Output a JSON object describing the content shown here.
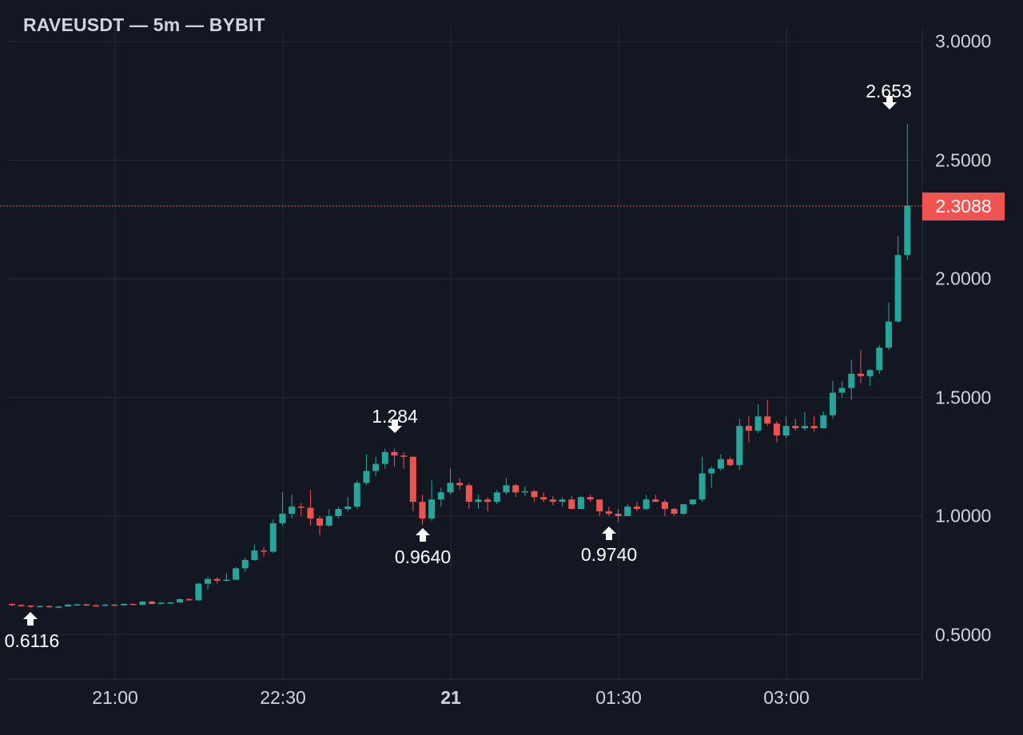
{
  "chart_data": {
    "type": "candlestick",
    "title": "RAVEUSDT — 5m — BYBIT",
    "symbol": "RAVEUSDT",
    "interval": "5m",
    "exchange": "BYBIT",
    "xlabel": "",
    "ylabel": "",
    "ylim": [
      0.32,
      3.05
    ],
    "grid": true,
    "y_ticks": [
      "3.0000",
      "2.5000",
      "2.0000",
      "1.5000",
      "1.0000",
      "0.5000"
    ],
    "x_ticks": [
      "21:00",
      "22:30",
      "21",
      "01:30",
      "03:00"
    ],
    "last_price": "2.3088",
    "annotations": [
      {
        "label": "0.6116",
        "type": "low",
        "direction": "up"
      },
      {
        "label": "1.284",
        "type": "high",
        "direction": "down"
      },
      {
        "label": "0.9640",
        "type": "low",
        "direction": "up"
      },
      {
        "label": "0.9740",
        "type": "low",
        "direction": "up"
      },
      {
        "label": "2.653",
        "type": "high",
        "direction": "down"
      }
    ],
    "colors": {
      "up": "#26a69a",
      "down": "#ef5350",
      "background": "#131722",
      "grid": "#262b36",
      "text": "#d1d4dc"
    },
    "candles": [
      [
        0.63,
        0.632,
        0.62,
        0.625
      ],
      [
        0.625,
        0.628,
        0.621,
        0.623
      ],
      [
        0.623,
        0.626,
        0.612,
        0.62
      ],
      [
        0.62,
        0.624,
        0.617,
        0.621
      ],
      [
        0.621,
        0.623,
        0.614,
        0.616
      ],
      [
        0.616,
        0.622,
        0.612,
        0.619
      ],
      [
        0.619,
        0.629,
        0.618,
        0.627
      ],
      [
        0.627,
        0.63,
        0.623,
        0.628
      ],
      [
        0.628,
        0.631,
        0.622,
        0.624
      ],
      [
        0.624,
        0.628,
        0.621,
        0.622
      ],
      [
        0.622,
        0.629,
        0.62,
        0.627
      ],
      [
        0.627,
        0.63,
        0.621,
        0.624
      ],
      [
        0.624,
        0.632,
        0.622,
        0.63
      ],
      [
        0.63,
        0.632,
        0.625,
        0.626
      ],
      [
        0.626,
        0.642,
        0.624,
        0.64
      ],
      [
        0.64,
        0.643,
        0.628,
        0.63
      ],
      [
        0.63,
        0.637,
        0.628,
        0.635
      ],
      [
        0.635,
        0.64,
        0.632,
        0.636
      ],
      [
        0.636,
        0.653,
        0.634,
        0.65
      ],
      [
        0.65,
        0.655,
        0.643,
        0.645
      ],
      [
        0.645,
        0.72,
        0.642,
        0.715
      ],
      [
        0.715,
        0.745,
        0.69,
        0.735
      ],
      [
        0.735,
        0.742,
        0.715,
        0.728
      ],
      [
        0.728,
        0.76,
        0.725,
        0.732
      ],
      [
        0.732,
        0.785,
        0.73,
        0.78
      ],
      [
        0.78,
        0.825,
        0.765,
        0.815
      ],
      [
        0.815,
        0.88,
        0.812,
        0.855
      ],
      [
        0.855,
        0.87,
        0.83,
        0.85
      ],
      [
        0.85,
        0.985,
        0.845,
        0.97
      ],
      [
        0.97,
        1.1,
        0.96,
        1.01
      ],
      [
        1.01,
        1.09,
        0.99,
        1.04
      ],
      [
        1.04,
        1.055,
        1.0,
        1.035
      ],
      [
        1.035,
        1.11,
        0.96,
        0.99
      ],
      [
        0.99,
        1.0,
        0.92,
        0.96
      ],
      [
        0.96,
        1.03,
        0.955,
        1.0
      ],
      [
        1.0,
        1.04,
        0.99,
        1.03
      ],
      [
        1.03,
        1.08,
        1.02,
        1.04
      ],
      [
        1.04,
        1.15,
        1.03,
        1.14
      ],
      [
        1.14,
        1.26,
        1.13,
        1.19
      ],
      [
        1.19,
        1.25,
        1.17,
        1.22
      ],
      [
        1.22,
        1.284,
        1.2,
        1.27
      ],
      [
        1.27,
        1.284,
        1.21,
        1.255
      ],
      [
        1.255,
        1.27,
        1.2,
        1.25
      ],
      [
        1.25,
        1.25,
        1.02,
        1.06
      ],
      [
        1.06,
        1.09,
        0.964,
        0.99
      ],
      [
        0.99,
        1.15,
        0.98,
        1.07
      ],
      [
        1.07,
        1.12,
        1.04,
        1.1
      ],
      [
        1.1,
        1.2,
        1.09,
        1.14
      ],
      [
        1.14,
        1.16,
        1.11,
        1.13
      ],
      [
        1.13,
        1.14,
        1.03,
        1.06
      ],
      [
        1.06,
        1.09,
        1.03,
        1.07
      ],
      [
        1.07,
        1.08,
        1.02,
        1.06
      ],
      [
        1.06,
        1.11,
        1.05,
        1.1
      ],
      [
        1.1,
        1.16,
        1.09,
        1.13
      ],
      [
        1.13,
        1.135,
        1.08,
        1.1
      ],
      [
        1.1,
        1.125,
        1.085,
        1.105
      ],
      [
        1.105,
        1.11,
        1.06,
        1.08
      ],
      [
        1.08,
        1.1,
        1.06,
        1.07
      ],
      [
        1.07,
        1.085,
        1.045,
        1.06
      ],
      [
        1.06,
        1.08,
        1.04,
        1.07
      ],
      [
        1.07,
        1.085,
        1.03,
        1.03
      ],
      [
        1.03,
        1.085,
        1.03,
        1.08
      ],
      [
        1.08,
        1.09,
        1.06,
        1.07
      ],
      [
        1.07,
        1.07,
        1.0,
        1.02
      ],
      [
        1.02,
        1.04,
        1.0,
        1.01
      ],
      [
        1.01,
        1.03,
        0.974,
        1.0
      ],
      [
        1.0,
        1.05,
        1.0,
        1.04
      ],
      [
        1.04,
        1.06,
        1.02,
        1.03
      ],
      [
        1.03,
        1.09,
        1.025,
        1.07
      ],
      [
        1.07,
        1.09,
        1.06,
        1.06
      ],
      [
        1.06,
        1.07,
        1.0,
        1.03
      ],
      [
        1.03,
        1.035,
        1.0,
        1.01
      ],
      [
        1.01,
        1.05,
        1.005,
        1.05
      ],
      [
        1.05,
        1.07,
        1.045,
        1.07
      ],
      [
        1.07,
        1.25,
        1.06,
        1.18
      ],
      [
        1.18,
        1.21,
        1.12,
        1.2
      ],
      [
        1.2,
        1.26,
        1.19,
        1.24
      ],
      [
        1.24,
        1.25,
        1.21,
        1.215
      ],
      [
        1.215,
        1.41,
        1.195,
        1.38
      ],
      [
        1.38,
        1.42,
        1.31,
        1.36
      ],
      [
        1.36,
        1.47,
        1.35,
        1.42
      ],
      [
        1.42,
        1.49,
        1.38,
        1.39
      ],
      [
        1.39,
        1.4,
        1.31,
        1.34
      ],
      [
        1.34,
        1.42,
        1.33,
        1.38
      ],
      [
        1.38,
        1.41,
        1.36,
        1.37
      ],
      [
        1.37,
        1.44,
        1.36,
        1.38
      ],
      [
        1.38,
        1.42,
        1.355,
        1.37
      ],
      [
        1.37,
        1.44,
        1.37,
        1.425
      ],
      [
        1.425,
        1.57,
        1.41,
        1.52
      ],
      [
        1.52,
        1.57,
        1.5,
        1.54
      ],
      [
        1.54,
        1.66,
        1.49,
        1.6
      ],
      [
        1.6,
        1.7,
        1.56,
        1.59
      ],
      [
        1.59,
        1.62,
        1.55,
        1.615
      ],
      [
        1.615,
        1.72,
        1.6,
        1.71
      ],
      [
        1.71,
        1.9,
        1.7,
        1.82
      ],
      [
        1.82,
        2.18,
        1.815,
        2.1
      ],
      [
        2.1,
        2.653,
        2.08,
        2.3088
      ]
    ]
  },
  "header": {
    "title": "RAVEUSDT — 5m — BYBIT"
  },
  "axis": {
    "y_ticks": [
      "3.0000",
      "2.5000",
      "2.0000",
      "1.5000",
      "1.0000",
      "0.5000"
    ],
    "x_ticks": [
      "21:00",
      "22:30",
      "21",
      "01:30",
      "03:00"
    ]
  },
  "last_price": "2.3088",
  "annotations": {
    "low1": "0.6116",
    "high1": "1.284",
    "low2": "0.9640",
    "low3": "0.9740",
    "high2": "2.653"
  }
}
